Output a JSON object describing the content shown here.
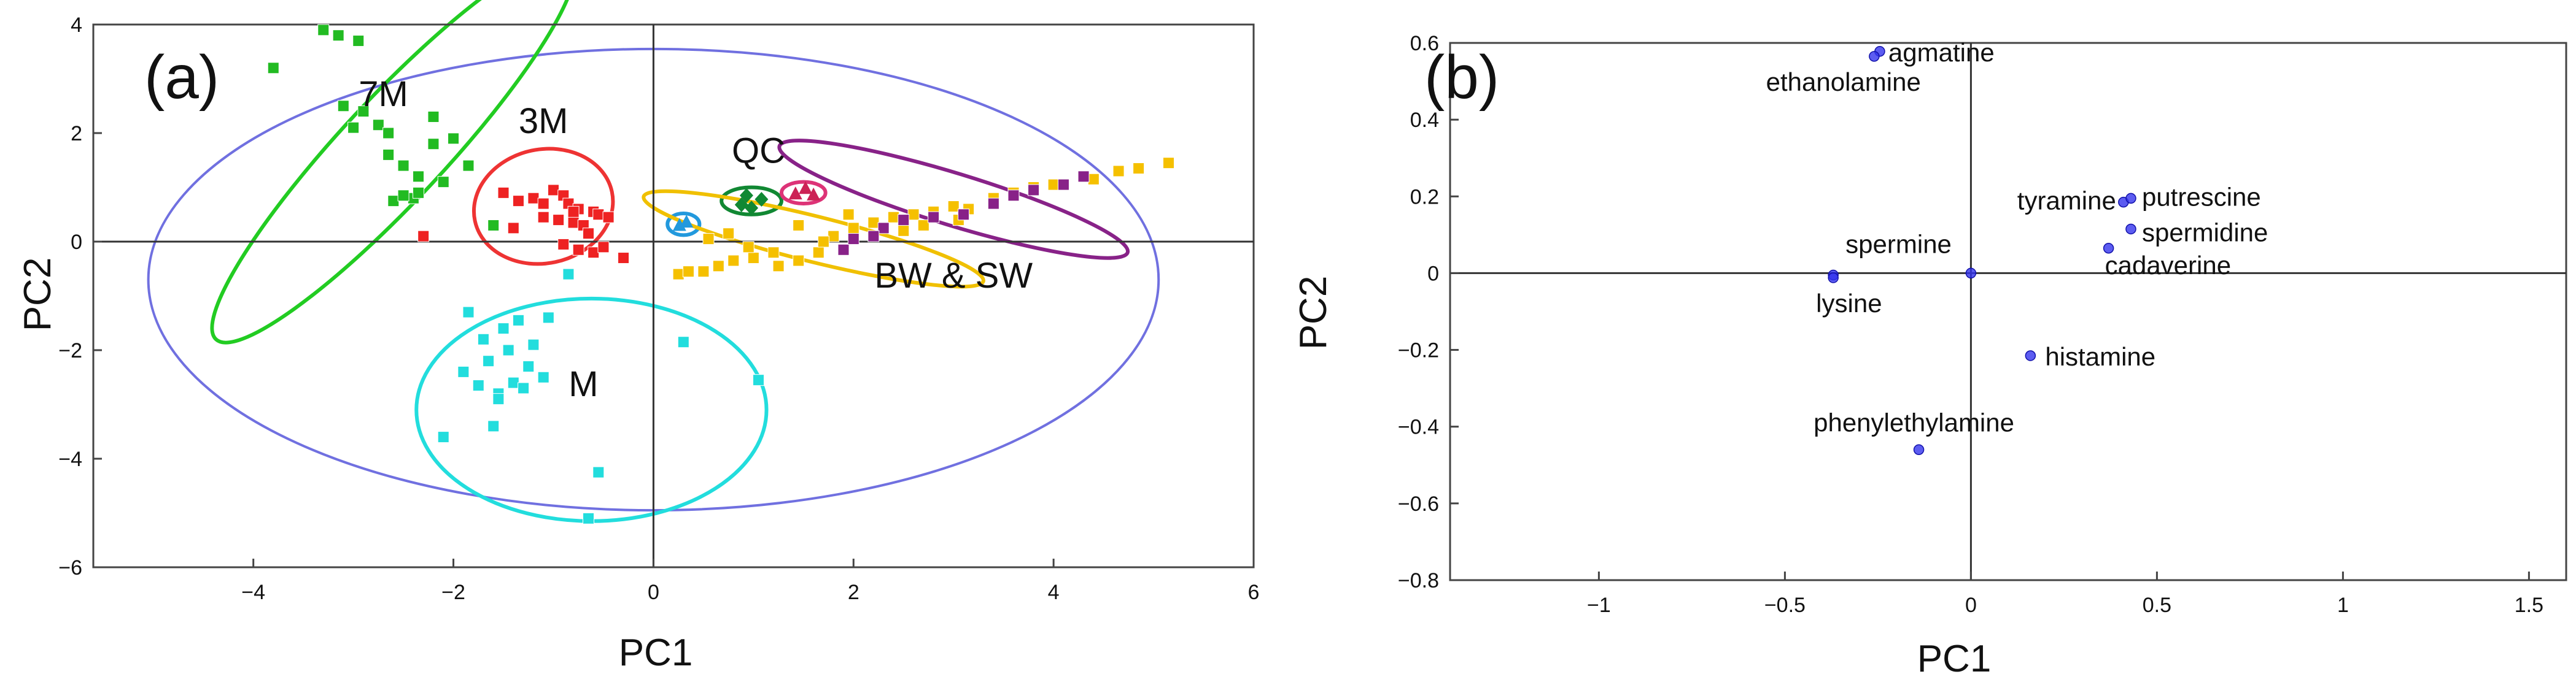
{
  "chart_data": [
    {
      "type": "scatter",
      "panel_label": "(a)",
      "xlabel": "PC1",
      "ylabel": "PC2",
      "xlim": [
        -5.6,
        6.0
      ],
      "ylim": [
        -6.0,
        4.0
      ],
      "xticks": [
        -4,
        -2,
        0,
        2,
        4,
        6
      ],
      "xtick_labels": [
        "−4",
        "−2",
        "0",
        "2",
        "4",
        "6"
      ],
      "yticks": [
        -6,
        -4,
        -2,
        0,
        2,
        4
      ],
      "ytick_labels": [
        "−6",
        "−4",
        "−2",
        "0",
        "2",
        "4"
      ],
      "ellipses": [
        {
          "name": "global",
          "color": "#7070e0",
          "cx": 0.0,
          "cy": -0.7,
          "rx": 5.05,
          "ry": 4.25,
          "angle": 0
        },
        {
          "name": "7M",
          "color": "#22cc22",
          "cx": -2.6,
          "cy": 1.7,
          "rx": 2.6,
          "ry": 0.95,
          "angle": -47
        },
        {
          "name": "3M",
          "color": "#ee3333",
          "cx": -1.1,
          "cy": 0.65,
          "rx": 0.7,
          "ry": 1.05,
          "angle": -12
        },
        {
          "name": "M",
          "color": "#22dddd",
          "cx": -0.62,
          "cy": -3.1,
          "rx": 1.75,
          "ry": 2.05,
          "angle": 0
        },
        {
          "name": "QC",
          "color": "#118833",
          "cx": 0.98,
          "cy": 0.75,
          "rx": 0.3,
          "ry": 0.25,
          "angle": 0
        },
        {
          "name": "QCblue",
          "color": "#2299dd",
          "cx": 0.3,
          "cy": 0.32,
          "rx": 0.16,
          "ry": 0.2,
          "angle": 0
        },
        {
          "name": "QCpink",
          "color": "#dd3377",
          "cx": 1.5,
          "cy": 0.9,
          "rx": 0.22,
          "ry": 0.2,
          "angle": 0
        },
        {
          "name": "BW",
          "color": "#f0c000",
          "cx": 1.6,
          "cy": 0.05,
          "rx": 1.75,
          "ry": 0.42,
          "angle": 14
        },
        {
          "name": "SW",
          "color": "#882288",
          "cx": 3.0,
          "cy": 0.78,
          "rx": 1.82,
          "ry": 0.48,
          "angle": 17
        }
      ],
      "series": [
        {
          "name": "7M",
          "color": "#22bb22",
          "marker": "square",
          "x": [
            -3.8,
            -3.3,
            -3.15,
            -2.95,
            -3.1,
            -2.9,
            -3.0,
            -2.75,
            -2.65,
            -2.5,
            -2.35,
            -2.6,
            -2.4,
            -2.2,
            -2.0,
            -2.65,
            -2.2,
            -1.85,
            -2.5,
            -2.35,
            -2.1,
            -1.6
          ],
          "y": [
            3.2,
            3.9,
            3.8,
            3.7,
            2.5,
            2.4,
            2.1,
            2.15,
            1.6,
            1.4,
            1.2,
            0.75,
            0.8,
            1.8,
            1.9,
            2.0,
            2.3,
            1.4,
            0.85,
            0.9,
            1.1,
            0.3
          ]
        },
        {
          "name": "3M",
          "color": "#ee2222",
          "marker": "square",
          "x": [
            -1.5,
            -1.35,
            -1.2,
            -1.0,
            -0.9,
            -0.85,
            -0.75,
            -0.6,
            -1.1,
            -0.95,
            -0.8,
            -0.7,
            -0.55,
            -0.45,
            -0.9,
            -0.75,
            -0.6,
            -0.5,
            -1.4,
            -0.3,
            -2.3,
            -1.1,
            -0.8,
            -0.65
          ],
          "y": [
            0.9,
            0.75,
            0.8,
            0.95,
            0.85,
            0.7,
            0.6,
            0.55,
            0.45,
            0.4,
            0.35,
            0.3,
            0.5,
            0.45,
            -0.05,
            -0.15,
            -0.2,
            -0.1,
            0.25,
            -0.3,
            0.1,
            0.7,
            0.55,
            0.15
          ]
        },
        {
          "name": "M",
          "color": "#22dddd",
          "marker": "square",
          "x": [
            -1.85,
            -1.7,
            -1.5,
            -1.35,
            -1.45,
            -1.2,
            -1.65,
            -1.4,
            -1.55,
            -1.3,
            -1.1,
            -1.9,
            -1.75,
            -2.1,
            -1.6,
            -0.65,
            0.3,
            1.05,
            -1.55,
            -1.25,
            -1.05,
            -0.85,
            -0.55
          ],
          "y": [
            -1.3,
            -1.8,
            -1.6,
            -1.45,
            -2.0,
            -1.9,
            -2.2,
            -2.6,
            -2.8,
            -2.7,
            -2.5,
            -2.4,
            -2.65,
            -3.6,
            -3.4,
            -5.1,
            -1.85,
            -2.55,
            -2.9,
            -2.3,
            -1.4,
            -0.6,
            -4.25
          ]
        },
        {
          "name": "QC",
          "color": "#118833",
          "marker": "diamond",
          "x": [
            0.88,
            0.98,
            1.08,
            0.93
          ],
          "y": [
            0.68,
            0.62,
            0.78,
            0.85
          ]
        },
        {
          "name": "QCblue",
          "color": "#2299dd",
          "marker": "triangle",
          "x": [
            0.26,
            0.33
          ],
          "y": [
            0.3,
            0.36
          ]
        },
        {
          "name": "QCpink",
          "color": "#cc2255",
          "marker": "triangle",
          "x": [
            1.42,
            1.52,
            1.6
          ],
          "y": [
            0.88,
            0.98,
            0.86
          ]
        },
        {
          "name": "BW",
          "color": "#f5c000",
          "marker": "square",
          "x": [
            0.25,
            0.35,
            0.5,
            0.65,
            0.8,
            1.0,
            1.25,
            1.45,
            1.65,
            1.8,
            2.0,
            2.2,
            2.4,
            2.6,
            2.8,
            3.0,
            3.15,
            3.4,
            3.6,
            3.8,
            4.0,
            4.4,
            4.65,
            4.85,
            5.15,
            2.5,
            2.7,
            3.05,
            0.55,
            0.75,
            0.95,
            1.2,
            1.45,
            1.7,
            1.95
          ],
          "y": [
            -0.6,
            -0.55,
            -0.55,
            -0.45,
            -0.35,
            -0.3,
            -0.45,
            -0.35,
            -0.2,
            0.1,
            0.25,
            0.35,
            0.45,
            0.5,
            0.55,
            0.65,
            0.6,
            0.8,
            0.9,
            1.0,
            1.05,
            1.15,
            1.3,
            1.35,
            1.45,
            0.2,
            0.3,
            0.4,
            0.05,
            0.15,
            -0.1,
            -0.2,
            0.3,
            0.0,
            0.5
          ]
        },
        {
          "name": "SW",
          "color": "#882288",
          "marker": "square",
          "x": [
            1.9,
            2.0,
            2.3,
            2.5,
            2.8,
            3.1,
            3.4,
            3.6,
            3.8,
            4.1,
            4.3,
            2.2
          ],
          "y": [
            -0.15,
            0.05,
            0.25,
            0.4,
            0.45,
            0.5,
            0.7,
            0.85,
            0.95,
            1.05,
            1.2,
            0.1
          ]
        }
      ],
      "annotations": [
        {
          "text": "7M",
          "x": -2.7,
          "y": 2.5
        },
        {
          "text": "3M",
          "x": -1.1,
          "y": 2.0
        },
        {
          "text": "QC",
          "x": 1.05,
          "y": 1.45
        },
        {
          "text": "BW & SW",
          "x": 3.0,
          "y": -0.85
        },
        {
          "text": "M",
          "x": -0.7,
          "y": -2.85
        }
      ]
    },
    {
      "type": "scatter",
      "panel_label": "(b)",
      "xlabel": "PC1",
      "ylabel": "PC2",
      "xlim": [
        -1.4,
        1.6
      ],
      "ylim": [
        -0.8,
        0.6
      ],
      "xticks": [
        -1,
        -0.5,
        0,
        0.5,
        1,
        1.5
      ],
      "xtick_labels": [
        "−1",
        "−0.5",
        "0",
        "0.5",
        "1",
        "1.5"
      ],
      "yticks": [
        -0.8,
        -0.6,
        -0.4,
        -0.2,
        0,
        0.2,
        0.4,
        0.6
      ],
      "ytick_labels": [
        "−0.8",
        "−0.6",
        "−0.4",
        "−0.2",
        "0",
        "0.2",
        "0.4",
        "0.6"
      ],
      "color": "#3333ee",
      "points": [
        {
          "label": "agmatine",
          "x": -0.245,
          "y": 0.578
        },
        {
          "label": "ethanolamine",
          "x": -0.26,
          "y": 0.565
        },
        {
          "label": "tyramine",
          "x": 0.41,
          "y": 0.185
        },
        {
          "label": "putrescine",
          "x": 0.43,
          "y": 0.195
        },
        {
          "label": "spermidine",
          "x": 0.43,
          "y": 0.115
        },
        {
          "label": "cadaverine",
          "x": 0.37,
          "y": 0.065
        },
        {
          "label": "spermine",
          "x": -0.37,
          "y": -0.005
        },
        {
          "label": "lysine",
          "x": -0.37,
          "y": -0.012
        },
        {
          "label": "",
          "x": 0.0,
          "y": 0.0
        },
        {
          "label": "histamine",
          "x": 0.16,
          "y": -0.215
        },
        {
          "label": "phenylethylamine",
          "x": -0.14,
          "y": -0.46
        }
      ]
    }
  ]
}
